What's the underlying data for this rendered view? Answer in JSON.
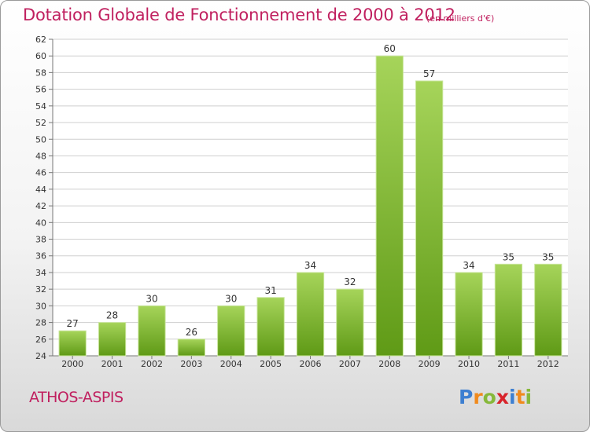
{
  "header": {
    "title": "Dotation Globale de Fonctionnement de 2000 à 2012",
    "unit": "(en milliers d'€)"
  },
  "footer": {
    "place": "ATHOS-ASPIS",
    "logo": [
      "P",
      "r",
      "o",
      "x",
      "i",
      "t",
      "i"
    ]
  },
  "colors": {
    "title": "#c0205f",
    "bar_light": "#a6d45a",
    "bar_dark": "#5f9a16",
    "grid": "#cfcfcf"
  },
  "chart_data": {
    "type": "bar",
    "title": "Dotation Globale de Fonctionnement de 2000 à 2012",
    "subtitle": "(en milliers d'€)",
    "xlabel": "",
    "ylabel": "",
    "categories": [
      "2000",
      "2001",
      "2002",
      "2003",
      "2004",
      "2005",
      "2006",
      "2007",
      "2008",
      "2009",
      "2010",
      "2011",
      "2012"
    ],
    "values": [
      27,
      28,
      30,
      26,
      30,
      31,
      34,
      32,
      60,
      57,
      34,
      35,
      35
    ],
    "ylim": [
      24,
      62
    ],
    "yticks": [
      24,
      26,
      28,
      30,
      32,
      34,
      36,
      38,
      40,
      42,
      44,
      46,
      48,
      50,
      52,
      54,
      56,
      58,
      60,
      62
    ],
    "grid": true,
    "data_labels": true
  }
}
